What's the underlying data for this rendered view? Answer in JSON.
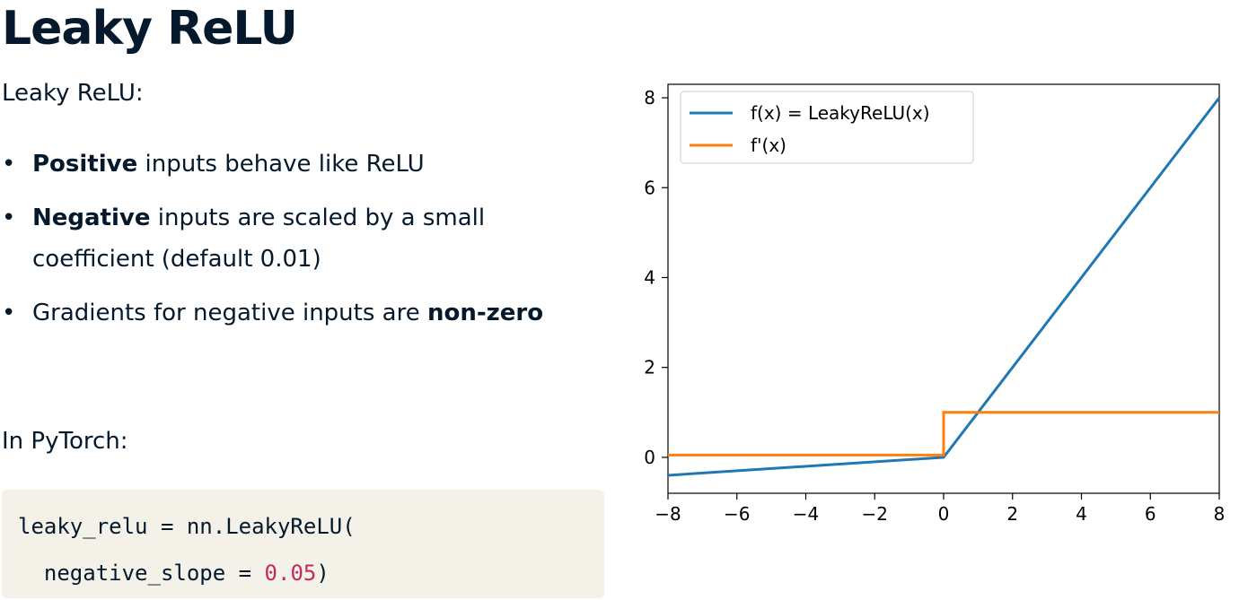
{
  "slide": {
    "title": "Leaky ReLU",
    "subtitle": "Leaky ReLU:",
    "bullets": [
      {
        "bold": "Positive",
        "rest": " inputs behave like ReLU"
      },
      {
        "bold": "Negative",
        "rest": " inputs are scaled by a small coefficient (default 0.01)"
      },
      {
        "pre": "Gradients for negative inputs are ",
        "bold": "non-zero"
      }
    ],
    "pytorch_label": "In PyTorch:",
    "code": {
      "line1": "leaky_relu = nn.LeakyReLU(",
      "line2_pre": "  negative_slope = ",
      "line2_num": "0.05",
      "line2_post": ")"
    }
  },
  "chart_data": {
    "type": "line",
    "title": "",
    "xlabel": "",
    "ylabel": "",
    "xlim": [
      -8,
      8
    ],
    "ylim": [
      -0.8,
      8.3
    ],
    "xticks": [
      -8,
      -6,
      -4,
      -2,
      0,
      2,
      4,
      6,
      8
    ],
    "xtick_labels": [
      "−8",
      "−6",
      "−4",
      "−2",
      "0",
      "2",
      "4",
      "6",
      "8"
    ],
    "yticks": [
      0,
      2,
      4,
      6,
      8
    ],
    "ytick_labels": [
      "0",
      "2",
      "4",
      "6",
      "8"
    ],
    "grid": false,
    "legend_position": "top-left",
    "series": [
      {
        "name": "f(x) = LeakyReLU(x)",
        "color": "#1f77b4",
        "x": [
          -8,
          0,
          8
        ],
        "y": [
          -0.4,
          0,
          8
        ]
      },
      {
        "name": "f'(x)",
        "color": "#ff7f0e",
        "x": [
          -8,
          0,
          0,
          8
        ],
        "y": [
          0.05,
          0.05,
          1,
          1
        ]
      }
    ]
  }
}
